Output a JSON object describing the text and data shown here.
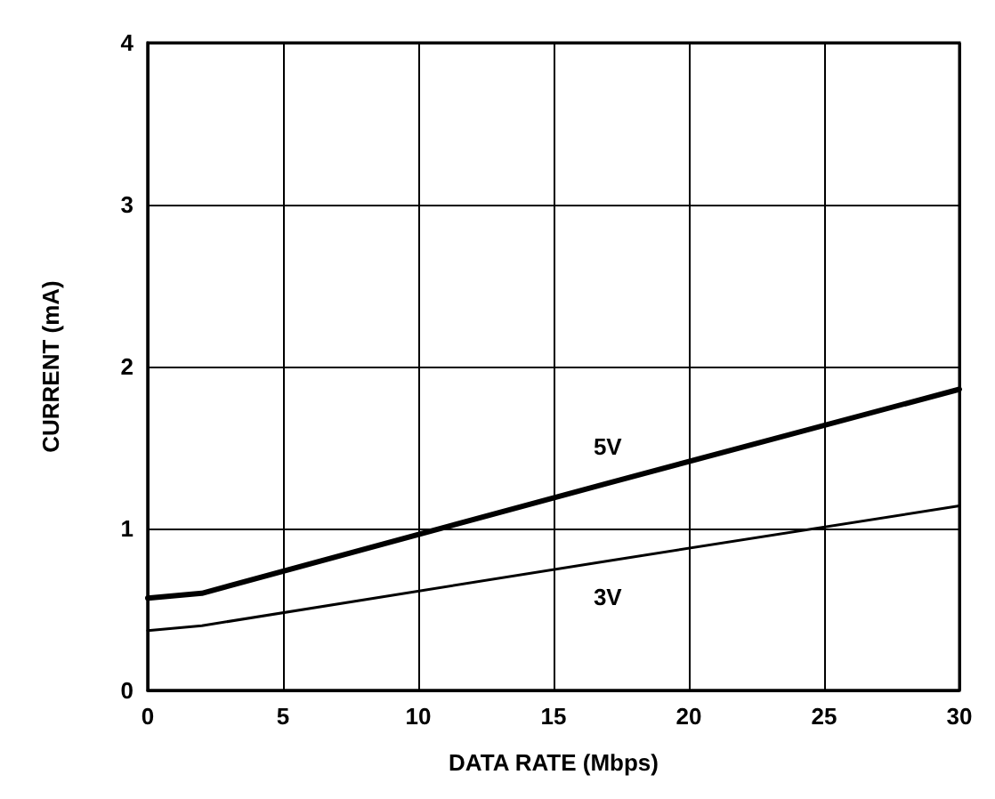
{
  "chart_data": {
    "type": "line",
    "xlabel": "DATA RATE (Mbps)",
    "ylabel": "CURRENT (mA)",
    "xlim": [
      0,
      30
    ],
    "xticks": [
      0,
      5,
      10,
      15,
      20,
      25,
      30
    ],
    "ylim": [
      0,
      4
    ],
    "yticks": [
      0,
      1,
      2,
      3,
      4
    ],
    "grid": true,
    "marker": "none",
    "line_style": "solid",
    "series": [
      {
        "name": "5V",
        "color": "#000000",
        "x": [
          0,
          2,
          17,
          30
        ],
        "values": [
          0.57,
          0.6,
          1.28,
          1.86
        ]
      },
      {
        "name": "3V",
        "color": "#000000",
        "x": [
          0,
          2,
          17,
          30
        ],
        "values": [
          0.37,
          0.4,
          0.8,
          1.14
        ]
      }
    ]
  }
}
